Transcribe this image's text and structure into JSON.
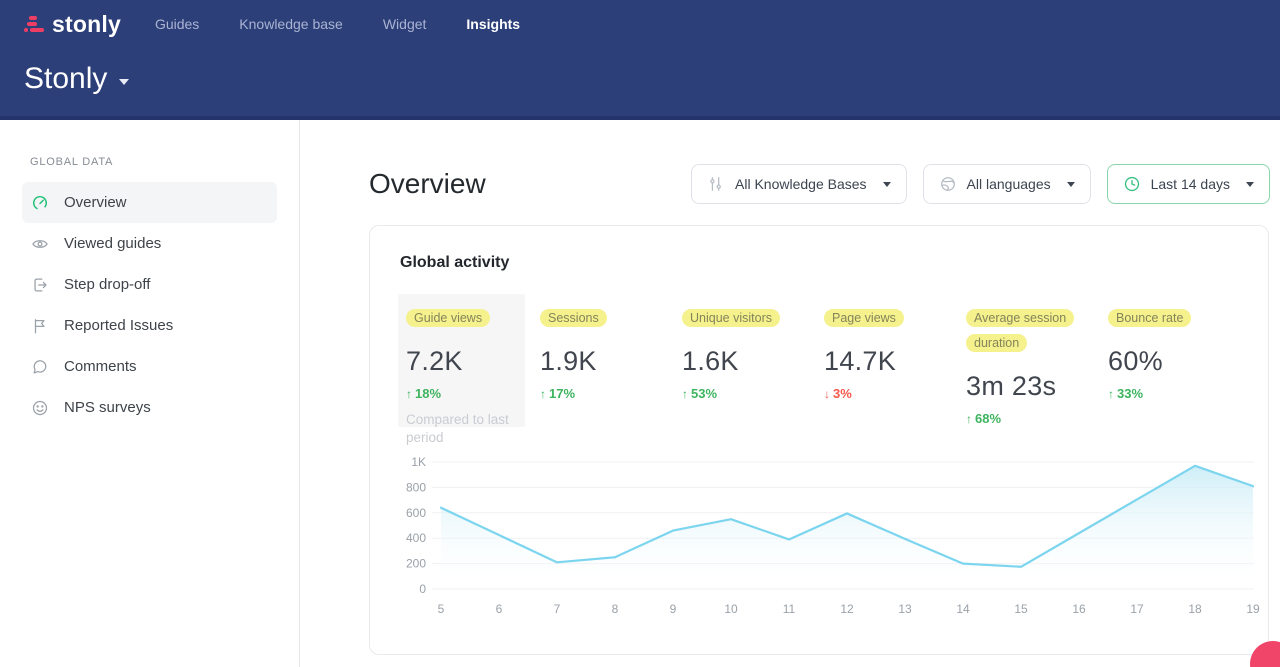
{
  "topnav": {
    "brand": "stonly",
    "items": [
      {
        "label": "Guides",
        "active": false
      },
      {
        "label": "Knowledge base",
        "active": false
      },
      {
        "label": "Widget",
        "active": false
      },
      {
        "label": "Insights",
        "active": true
      }
    ],
    "workspace": "Stonly"
  },
  "sidebar": {
    "section_label": "GLOBAL DATA",
    "items": [
      {
        "label": "Overview",
        "icon": "gauge-icon",
        "active": true
      },
      {
        "label": "Viewed guides",
        "icon": "eye-icon",
        "active": false
      },
      {
        "label": "Step drop-off",
        "icon": "exit-icon",
        "active": false
      },
      {
        "label": "Reported Issues",
        "icon": "flag-icon",
        "active": false
      },
      {
        "label": "Comments",
        "icon": "comment-icon",
        "active": false
      },
      {
        "label": "NPS surveys",
        "icon": "smiley-icon",
        "active": false
      }
    ]
  },
  "main": {
    "title": "Overview",
    "filters": {
      "knowledge_bases": {
        "label": "All Knowledge Bases",
        "icon": "sliders-icon"
      },
      "languages": {
        "label": "All languages",
        "icon": "globe-icon"
      },
      "date_range": {
        "label": "Last 14 days",
        "icon": "clock-icon"
      }
    },
    "card": {
      "title": "Global activity",
      "metrics": [
        {
          "label": "Guide views",
          "value": "7.2K",
          "delta": "18%",
          "direction": "up",
          "note": "Compared to last period",
          "highlighted_cell": true
        },
        {
          "label": "Sessions",
          "value": "1.9K",
          "delta": "17%",
          "direction": "up"
        },
        {
          "label": "Unique visitors",
          "value": "1.6K",
          "delta": "53%",
          "direction": "up"
        },
        {
          "label": "Page views",
          "value": "14.7K",
          "delta": "3%",
          "direction": "down"
        },
        {
          "label": "Average session duration",
          "value": "3m 23s",
          "delta": "68%",
          "direction": "up"
        },
        {
          "label": "Bounce rate",
          "value": "60%",
          "delta": "33%",
          "direction": "up"
        }
      ]
    }
  },
  "chart_data": {
    "type": "area",
    "title": "Global activity",
    "x": [
      5,
      6,
      7,
      8,
      9,
      10,
      11,
      12,
      13,
      14,
      15,
      16,
      17,
      18,
      19
    ],
    "values": [
      640,
      425,
      210,
      250,
      460,
      550,
      390,
      595,
      395,
      200,
      175,
      440,
      705,
      970,
      810
    ],
    "xlabel": "",
    "ylabel": "",
    "ylim": [
      0,
      1000
    ],
    "yticks": [
      0,
      200,
      400,
      600,
      800,
      1000
    ],
    "ytick_labels": [
      "0",
      "200",
      "400",
      "600",
      "800",
      "1K"
    ],
    "grid": true,
    "legend": "none",
    "line_color": "#7cd5ee",
    "fill_top_color": "#c9ecf7"
  },
  "colors": {
    "nav_bg": "#2d3f78",
    "nav_border": "#24336b",
    "brand_pink": "#ef3e63",
    "accent_green": "#1fc177",
    "highlight_yellow": "#f5f18c",
    "delta_up": "#3db45f",
    "delta_down": "#f4584a",
    "chat_bubble": "#f04568"
  }
}
